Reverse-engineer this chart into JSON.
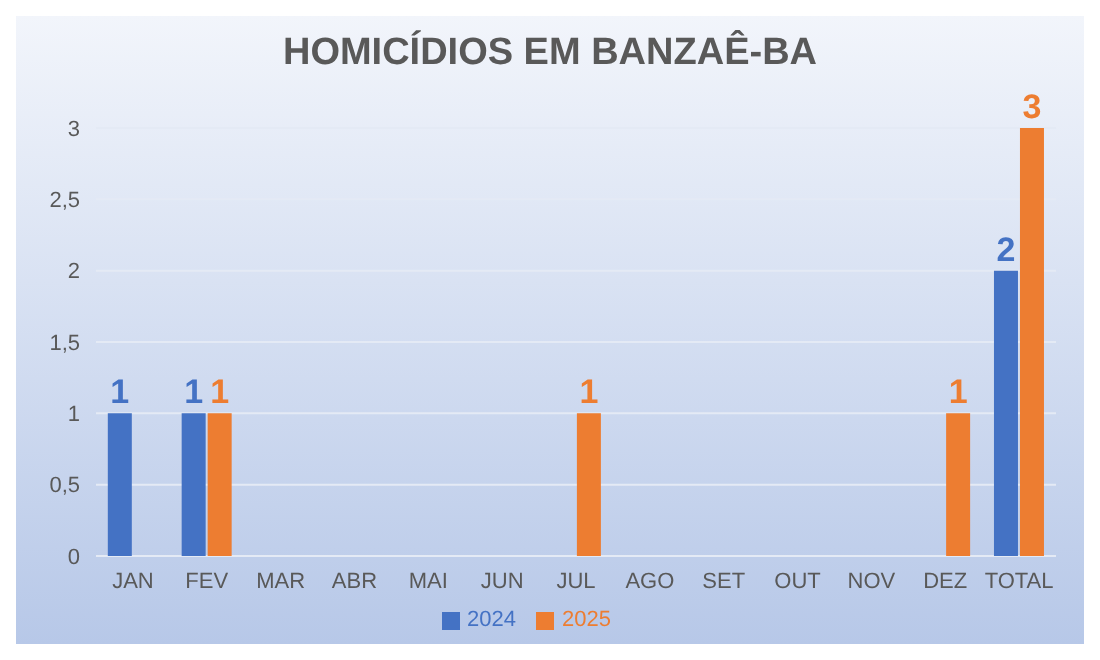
{
  "chart_data": {
    "type": "bar",
    "title": "HOMICÍDIOS EM BANZAÊ-BA",
    "categories": [
      "JAN",
      "FEV",
      "MAR",
      "ABR",
      "MAI",
      "JUN",
      "JUL",
      "AGO",
      "SET",
      "OUT",
      "NOV",
      "DEZ",
      "TOTAL"
    ],
    "series": [
      {
        "name": "2024",
        "color": "#4472c4",
        "values": [
          1,
          1,
          0,
          0,
          0,
          0,
          0,
          0,
          0,
          0,
          0,
          0,
          2
        ],
        "value_labels": [
          "1",
          "1",
          null,
          null,
          null,
          null,
          null,
          null,
          null,
          null,
          null,
          null,
          "2"
        ]
      },
      {
        "name": "2025",
        "color": "#ed7d31",
        "values": [
          0,
          1,
          0,
          0,
          0,
          0,
          1,
          0,
          0,
          0,
          0,
          1,
          3
        ],
        "value_labels": [
          null,
          "1",
          null,
          null,
          null,
          null,
          "1",
          null,
          null,
          null,
          null,
          "1",
          "3"
        ]
      }
    ],
    "ylim": [
      0,
      3
    ],
    "yticks": [
      {
        "value": 0,
        "label": "0"
      },
      {
        "value": 0.5,
        "label": "0,5"
      },
      {
        "value": 1,
        "label": "1"
      },
      {
        "value": 1.5,
        "label": "1,5"
      },
      {
        "value": 2,
        "label": "2"
      },
      {
        "value": 2.5,
        "label": "2,5"
      },
      {
        "value": 3,
        "label": "3"
      }
    ],
    "grid": "y",
    "legend": "bottom"
  }
}
